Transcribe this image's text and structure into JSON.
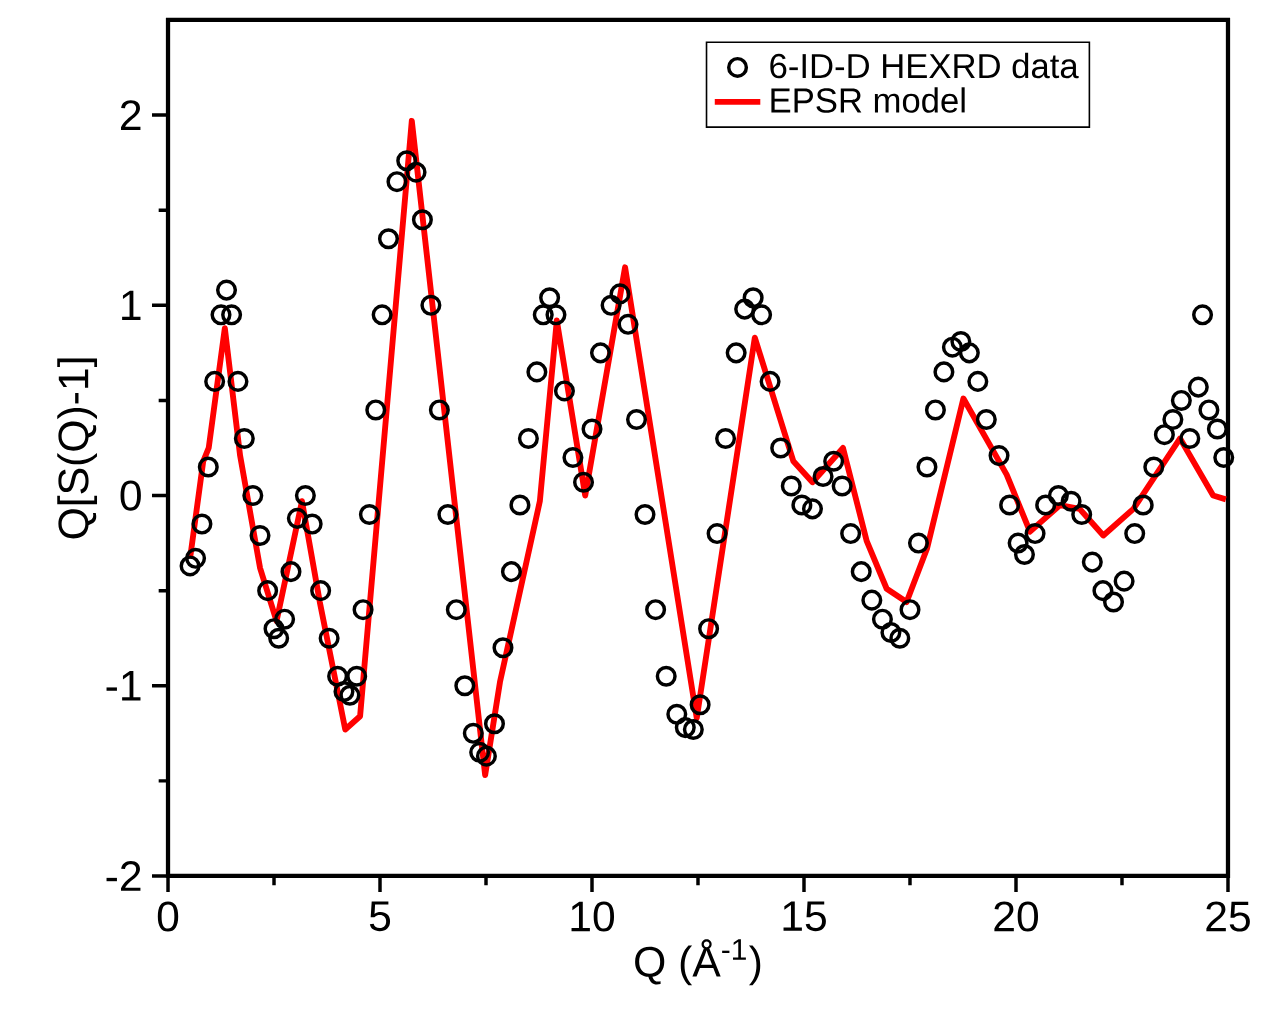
{
  "chart_data": {
    "type": "scatter",
    "xlabel": "Q (Å$^{-1}$)",
    "ylabel": "Q[S(Q)-1]",
    "xlim": [
      0,
      25
    ],
    "ylim": [
      -2,
      2.5
    ],
    "xticks": [
      0,
      {
        "value": 2.5,
        "label": null
      },
      5,
      {
        "value": 7.5,
        "label": null
      },
      10,
      {
        "value": 12.5,
        "label": null
      },
      15,
      {
        "value": 17.5,
        "label": null
      },
      20,
      {
        "value": 22.5,
        "label": null
      },
      25
    ],
    "yticks": [
      -2,
      {
        "value": -1.5,
        "label": null
      },
      -1,
      {
        "value": -0.5,
        "label": null
      },
      0,
      {
        "value": 0.5,
        "label": null
      },
      1,
      {
        "value": 1.5,
        "label": null
      },
      2
    ],
    "legend": "top right",
    "series": [
      {
        "name": "6-ID-D HEXRD data",
        "marker": "circle",
        "color": "#000000",
        "x": [
          0.52,
          0.65,
          0.8,
          0.95,
          1.1,
          1.25,
          1.38,
          1.5,
          1.65,
          1.8,
          2.0,
          2.17,
          2.35,
          2.5,
          2.61,
          2.75,
          2.9,
          3.05,
          3.24,
          3.4,
          3.6,
          3.8,
          4.0,
          4.15,
          4.29,
          4.45,
          4.6,
          4.75,
          4.9,
          5.05,
          5.2,
          5.4,
          5.63,
          5.85,
          6.0,
          6.2,
          6.4,
          6.6,
          6.8,
          7.0,
          7.2,
          7.35,
          7.51,
          7.7,
          7.9,
          8.1,
          8.3,
          8.5,
          8.7,
          8.85,
          9.0,
          9.15,
          9.35,
          9.55,
          9.8,
          10.0,
          10.2,
          10.45,
          10.66,
          10.85,
          11.05,
          11.25,
          11.5,
          11.75,
          12.0,
          12.2,
          12.39,
          12.55,
          12.75,
          12.95,
          13.15,
          13.4,
          13.6,
          13.8,
          14.0,
          14.2,
          14.45,
          14.7,
          14.95,
          15.2,
          15.45,
          15.7,
          15.9,
          16.1,
          16.35,
          16.6,
          16.85,
          17.05,
          17.26,
          17.5,
          17.7,
          17.9,
          18.1,
          18.3,
          18.5,
          18.7,
          18.9,
          19.1,
          19.3,
          19.6,
          19.85,
          20.05,
          20.2,
          20.45,
          20.7,
          21.0,
          21.3,
          21.55,
          21.8,
          22.05,
          22.3,
          22.55,
          22.8,
          23.0,
          23.25,
          23.5,
          23.7,
          23.9,
          24.1,
          24.3,
          24.4,
          24.55,
          24.75,
          24.9
        ],
        "values": [
          -0.37,
          -0.33,
          -0.15,
          0.15,
          0.6,
          0.95,
          1.08,
          0.95,
          0.6,
          0.3,
          0.0,
          -0.21,
          -0.5,
          -0.7,
          -0.75,
          -0.65,
          -0.4,
          -0.12,
          0.0,
          -0.15,
          -0.5,
          -0.75,
          -0.95,
          -1.03,
          -1.05,
          -0.95,
          -0.6,
          -0.1,
          0.45,
          0.95,
          1.35,
          1.65,
          1.76,
          1.7,
          1.45,
          1.0,
          0.45,
          -0.1,
          -0.6,
          -1.0,
          -1.25,
          -1.35,
          -1.37,
          -1.2,
          -0.8,
          -0.4,
          -0.05,
          0.3,
          0.65,
          0.95,
          1.04,
          0.95,
          0.55,
          0.2,
          0.07,
          0.35,
          0.75,
          1.0,
          1.06,
          0.9,
          0.4,
          -0.1,
          -0.6,
          -0.95,
          -1.15,
          -1.22,
          -1.23,
          -1.1,
          -0.7,
          -0.2,
          0.3,
          0.75,
          0.98,
          1.04,
          0.95,
          0.6,
          0.25,
          0.05,
          -0.05,
          -0.07,
          0.1,
          0.18,
          0.05,
          -0.2,
          -0.4,
          -0.55,
          -0.65,
          -0.72,
          -0.75,
          -0.6,
          -0.25,
          0.15,
          0.45,
          0.65,
          0.78,
          0.81,
          0.75,
          0.6,
          0.4,
          0.21,
          -0.05,
          -0.25,
          -0.31,
          -0.2,
          -0.05,
          0.0,
          -0.03,
          -0.1,
          -0.35,
          -0.5,
          -0.56,
          -0.45,
          -0.2,
          -0.05,
          0.15,
          0.32,
          0.4,
          0.5,
          0.3,
          0.57,
          0.95,
          0.45,
          0.35,
          0.2
        ]
      },
      {
        "name": "EPSR model",
        "type": "line",
        "line_style": "solid",
        "color": "#ff0000",
        "x": [
          0.52,
          0.83,
          0.96,
          1.34,
          1.7,
          2.17,
          2.56,
          3.16,
          3.58,
          4.18,
          4.53,
          5.75,
          7.48,
          7.83,
          8.77,
          9.17,
          9.84,
          10.78,
          12.47,
          13.84,
          14.75,
          15.2,
          15.92,
          16.48,
          16.95,
          17.42,
          17.9,
          18.76,
          19.78,
          20.33,
          21.04,
          21.5,
          22.06,
          22.77,
          23.87,
          24.65,
          24.95
        ],
        "values": [
          -0.33,
          0.18,
          0.25,
          0.88,
          0.21,
          -0.38,
          -0.66,
          -0.03,
          -0.56,
          -1.23,
          -1.16,
          1.97,
          -1.47,
          -0.98,
          -0.03,
          0.92,
          0.0,
          1.2,
          -1.17,
          0.83,
          0.18,
          0.07,
          0.25,
          -0.24,
          -0.49,
          -0.56,
          -0.28,
          0.51,
          0.11,
          -0.19,
          -0.05,
          -0.07,
          -0.21,
          -0.07,
          0.3,
          0.0,
          -0.02
        ]
      }
    ]
  }
}
